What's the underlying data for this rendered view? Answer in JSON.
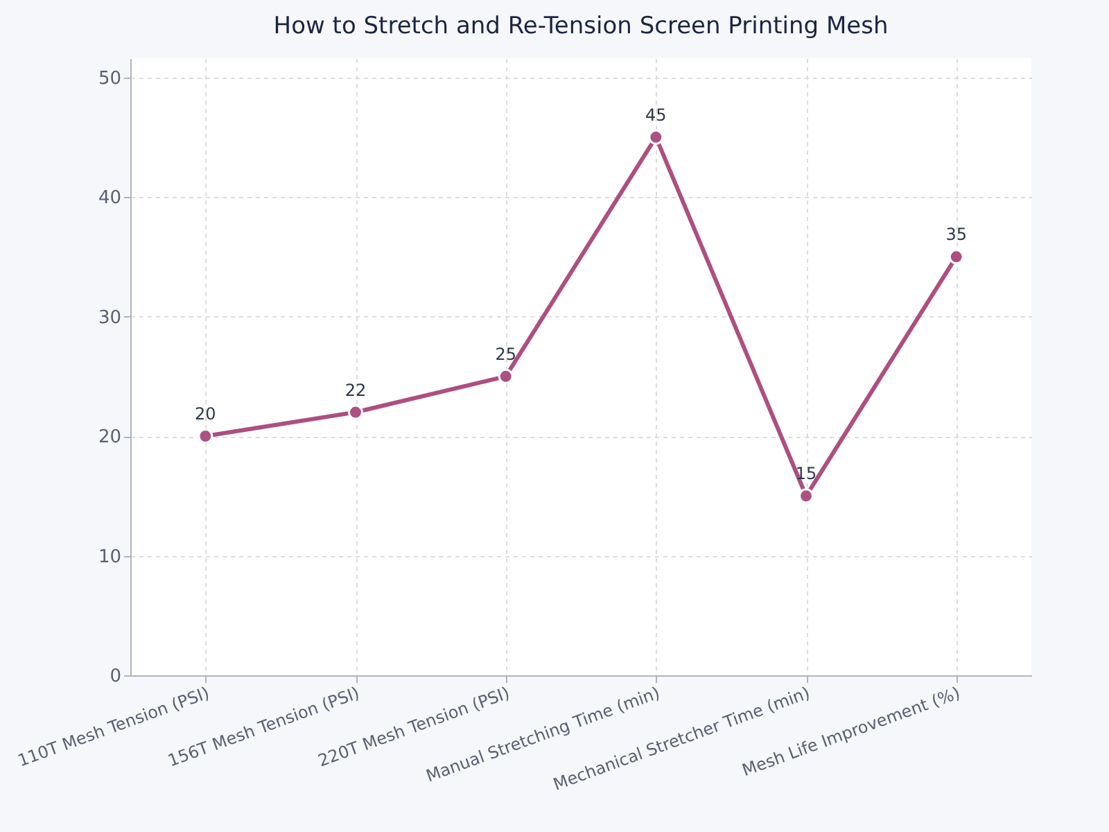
{
  "chart_data": {
    "type": "line",
    "title": "How to Stretch and Re-Tension Screen Printing Mesh",
    "categories": [
      "110T Mesh Tension (PSI)",
      "156T Mesh Tension (PSI)",
      "220T Mesh Tension (PSI)",
      "Manual Stretching Time (min)",
      "Mechanical Stretcher Time (min)",
      "Mesh Life Improvement (%)"
    ],
    "series": [
      {
        "color": "#ad4f80",
        "values": [
          20,
          22,
          25,
          45,
          15,
          35
        ]
      }
    ],
    "ylim": [
      0,
      51.6
    ],
    "yticks": [
      0,
      10,
      20,
      30,
      40,
      50
    ],
    "grid": true,
    "marker": "circle",
    "line_style": "solid",
    "data_labels": true,
    "legend": false
  }
}
